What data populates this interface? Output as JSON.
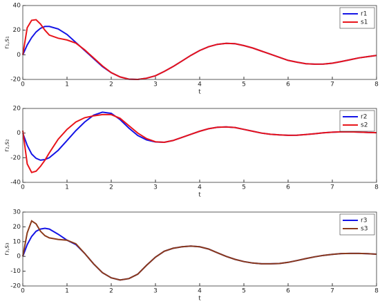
{
  "chart_data": [
    {
      "type": "line",
      "xlabel": "t",
      "ylabel": "r₁,s₁",
      "legend": "upper right",
      "x": [
        0,
        0.1,
        0.2,
        0.3,
        0.4,
        0.5,
        0.6,
        0.8,
        1.0,
        1.2,
        1.4,
        1.6,
        1.8,
        2.0,
        2.2,
        2.4,
        2.6,
        2.8,
        3.0,
        3.2,
        3.4,
        3.6,
        3.8,
        4.0,
        4.2,
        4.4,
        4.6,
        4.8,
        5.0,
        5.2,
        5.4,
        5.6,
        5.8,
        6.0,
        6.2,
        6.4,
        6.6,
        6.8,
        7.0,
        7.2,
        7.4,
        7.6,
        7.8,
        8.0
      ],
      "series": [
        {
          "name": "r1",
          "color": "#1414e6",
          "values": [
            0,
            8,
            14,
            18.5,
            21.5,
            23,
            23,
            21,
            16.5,
            10,
            3.5,
            -3,
            -9.5,
            -14.5,
            -18,
            -19.8,
            -20,
            -19,
            -17,
            -13.5,
            -9.5,
            -5,
            -0.5,
            3.5,
            6.5,
            8.5,
            9.3,
            9,
            7.5,
            5.5,
            3,
            0.5,
            -2,
            -4.5,
            -6,
            -7.2,
            -7.6,
            -7.5,
            -6.8,
            -5.5,
            -4,
            -2.5,
            -1.5,
            -0.5
          ]
        },
        {
          "name": "s1",
          "color": "#e8141a",
          "values": [
            0,
            22,
            28,
            28.5,
            25,
            20,
            16,
            13.5,
            12,
            9.5,
            4,
            -2.5,
            -9,
            -14.5,
            -18,
            -19.8,
            -20,
            -19,
            -17,
            -13.5,
            -9.5,
            -5,
            -0.5,
            3.5,
            6.5,
            8.5,
            9.3,
            9,
            7.5,
            5.5,
            3,
            0.5,
            -2,
            -4.5,
            -6,
            -7.2,
            -7.6,
            -7.5,
            -6.8,
            -5.5,
            -4,
            -2.5,
            -1.5,
            -0.5
          ]
        }
      ],
      "xlim": [
        0,
        8
      ],
      "xticks": [
        0,
        1,
        2,
        3,
        4,
        5,
        6,
        7,
        8
      ],
      "ylim": [
        -20,
        40
      ],
      "yticks": [
        -20,
        0,
        20,
        40
      ]
    },
    {
      "type": "line",
      "xlabel": "t",
      "ylabel": "r₂,s₂",
      "legend": "upper right",
      "x": [
        0,
        0.1,
        0.2,
        0.3,
        0.4,
        0.5,
        0.6,
        0.8,
        1.0,
        1.2,
        1.4,
        1.6,
        1.8,
        2.0,
        2.2,
        2.4,
        2.6,
        2.8,
        3.0,
        3.2,
        3.4,
        3.6,
        3.8,
        4.0,
        4.2,
        4.4,
        4.6,
        4.8,
        5.0,
        5.2,
        5.4,
        5.6,
        5.8,
        6.0,
        6.2,
        6.4,
        6.6,
        6.8,
        7.0,
        7.2,
        7.4,
        7.6,
        7.8,
        8.0
      ],
      "series": [
        {
          "name": "r2",
          "color": "#1414e6",
          "values": [
            0,
            -10,
            -17,
            -20.5,
            -22,
            -21.5,
            -20,
            -14,
            -6,
            2,
            9,
            14.5,
            17,
            16,
            11,
            4,
            -2,
            -5.5,
            -7.2,
            -7.5,
            -6,
            -3.5,
            -1,
            1.5,
            3.5,
            4.7,
            5,
            4.5,
            3,
            1.5,
            0,
            -1,
            -1.5,
            -1.8,
            -1.7,
            -1.2,
            -0.5,
            0.2,
            0.7,
            1,
            1,
            0.8,
            0.5,
            0.3
          ]
        },
        {
          "name": "s2",
          "color": "#e8141a",
          "values": [
            2,
            -25,
            -32,
            -31,
            -27,
            -22,
            -16,
            -5,
            3,
            9,
            12.5,
            14,
            15,
            15,
            12,
            6,
            0,
            -4.5,
            -7,
            -7.5,
            -6,
            -3.5,
            -1,
            1.5,
            3.5,
            4.7,
            5,
            4.5,
            3,
            1.5,
            0,
            -1,
            -1.5,
            -1.8,
            -1.7,
            -1.2,
            -0.5,
            0.2,
            0.7,
            1,
            1,
            0.8,
            0.5,
            0.3
          ]
        }
      ],
      "xlim": [
        0,
        8
      ],
      "xticks": [
        0,
        1,
        2,
        3,
        4,
        5,
        6,
        7,
        8
      ],
      "ylim": [
        -40,
        20
      ],
      "yticks": [
        -40,
        -20,
        0,
        20
      ]
    },
    {
      "type": "line",
      "xlabel": "t",
      "ylabel": "r₃,s₃",
      "legend": "upper right",
      "x": [
        0,
        0.1,
        0.2,
        0.3,
        0.4,
        0.5,
        0.6,
        0.8,
        1.0,
        1.2,
        1.4,
        1.6,
        1.8,
        2.0,
        2.2,
        2.4,
        2.6,
        2.8,
        3.0,
        3.2,
        3.4,
        3.6,
        3.8,
        4.0,
        4.2,
        4.4,
        4.6,
        4.8,
        5.0,
        5.2,
        5.4,
        5.6,
        5.8,
        6.0,
        6.2,
        6.4,
        6.6,
        6.8,
        7.0,
        7.2,
        7.4,
        7.6,
        7.8,
        8.0
      ],
      "series": [
        {
          "name": "r3",
          "color": "#1414e6",
          "values": [
            0,
            8,
            13.5,
            17,
            18.5,
            19,
            18.5,
            15,
            11,
            8,
            2,
            -5,
            -11,
            -14.5,
            -16,
            -15,
            -12,
            -6,
            -0.5,
            3.5,
            5.5,
            6.5,
            7,
            6.5,
            5,
            2.5,
            0,
            -2,
            -3.5,
            -4.5,
            -5,
            -5,
            -4.8,
            -4,
            -2.8,
            -1.5,
            -0.3,
            0.7,
            1.4,
            1.9,
            2,
            2,
            1.8,
            1.5
          ]
        },
        {
          "name": "s3",
          "color": "#8b3a1a",
          "values": [
            0,
            16,
            24,
            22,
            17,
            14,
            12.5,
            11.5,
            11,
            8.5,
            2,
            -5,
            -11,
            -14.5,
            -16,
            -15,
            -12,
            -6,
            -0.5,
            3.5,
            5.5,
            6.5,
            7,
            6.5,
            5,
            2.5,
            0,
            -2,
            -3.5,
            -4.5,
            -5,
            -5,
            -4.8,
            -4,
            -2.8,
            -1.5,
            -0.3,
            0.7,
            1.4,
            1.9,
            2,
            2,
            1.8,
            1.5
          ]
        }
      ],
      "xlim": [
        0,
        8
      ],
      "xticks": [
        0,
        1,
        2,
        3,
        4,
        5,
        6,
        7,
        8
      ],
      "ylim": [
        -20,
        30
      ],
      "yticks": [
        -20,
        -10,
        0,
        10,
        20,
        30
      ]
    }
  ]
}
